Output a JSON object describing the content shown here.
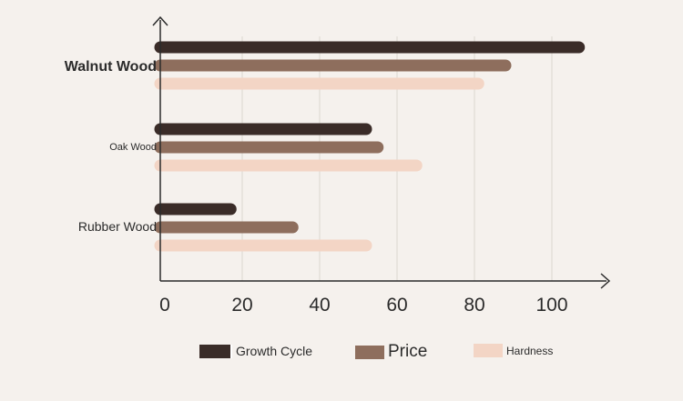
{
  "chart_data": {
    "type": "bar",
    "orientation": "horizontal",
    "categories": [
      "Walnut Wood",
      "Oak Wood",
      "Rubber Wood"
    ],
    "series": [
      {
        "name": "Growth Cycle",
        "values": [
          107,
          52,
          17
        ],
        "color": "#3a2c28"
      },
      {
        "name": "Price",
        "values": [
          88,
          55,
          33
        ],
        "color": "#8e6e5d"
      },
      {
        "name": "Hardness",
        "values": [
          81,
          65,
          52
        ],
        "color": "#f3d5c5"
      }
    ],
    "x_ticks": [
      "0",
      "20",
      "40",
      "60",
      "80",
      "100"
    ],
    "xlim": [
      0,
      115
    ],
    "grid": true,
    "legend_position": "bottom",
    "title": "",
    "xlabel": "",
    "ylabel": ""
  }
}
